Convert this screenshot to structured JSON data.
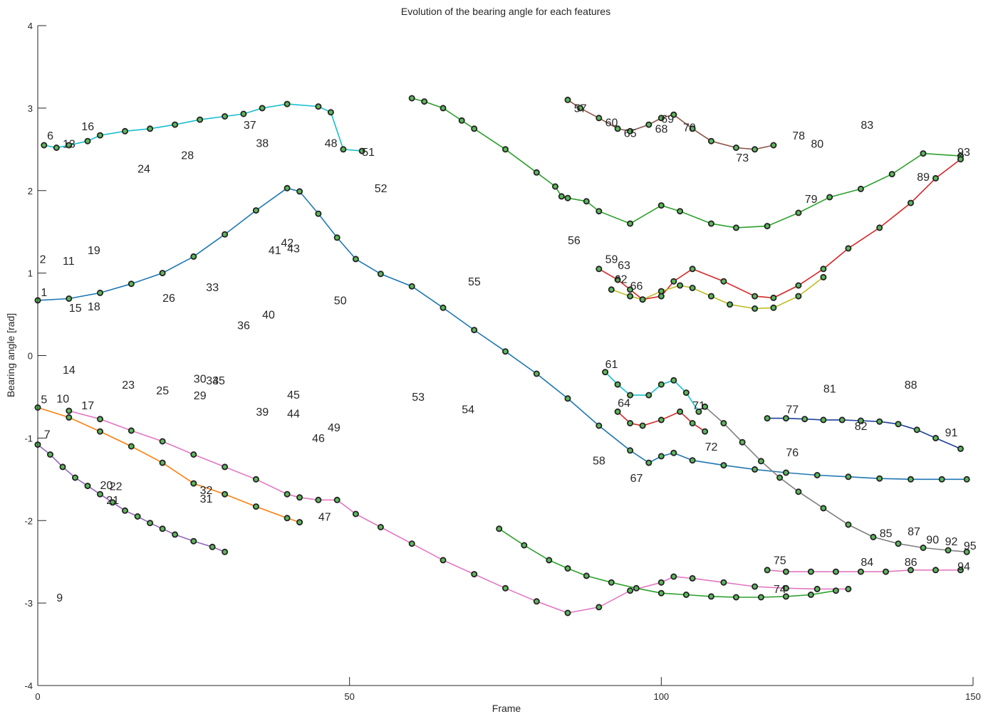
{
  "chart_data": {
    "type": "line",
    "title": "Evolution of the bearing angle for each features",
    "xlabel": "Frame",
    "ylabel": "Bearing angle [rad]",
    "xlim": [
      0,
      150
    ],
    "ylim": [
      -4,
      4
    ],
    "xticks": [
      0,
      50,
      100,
      150
    ],
    "yticks": [
      -4,
      -3,
      -2,
      -1,
      0,
      1,
      2,
      3,
      4
    ],
    "grid": false,
    "marker": {
      "face": "#5cb85c",
      "edge": "#222222"
    },
    "series": [
      {
        "color": "#1f77b4",
        "x": [
          0,
          5,
          10,
          15,
          20,
          25,
          30,
          35,
          40,
          42,
          45,
          48,
          51,
          55,
          60,
          65,
          70,
          75,
          80,
          85,
          90,
          95,
          98,
          100,
          102,
          105,
          110,
          115,
          120,
          125,
          130,
          135,
          140,
          145,
          149
        ],
        "y": [
          0.67,
          0.69,
          0.76,
          0.87,
          1.0,
          1.2,
          1.47,
          1.76,
          2.03,
          1.99,
          1.72,
          1.43,
          1.17,
          0.99,
          0.84,
          0.58,
          0.31,
          0.05,
          -0.22,
          -0.52,
          -0.85,
          -1.15,
          -1.3,
          -1.22,
          -1.18,
          -1.27,
          -1.33,
          -1.38,
          -1.42,
          -1.45,
          -1.47,
          -1.49,
          -1.5,
          -1.5,
          -1.5
        ]
      },
      {
        "color": "#e377c2",
        "x": [
          5,
          10,
          15,
          20,
          25,
          30,
          35,
          40,
          42,
          45,
          48,
          51,
          55,
          60,
          65,
          70,
          75,
          80,
          85,
          90,
          95,
          100,
          102,
          105,
          110,
          115,
          120,
          125,
          130
        ],
        "y": [
          -0.67,
          -0.77,
          -0.91,
          -1.04,
          -1.2,
          -1.35,
          -1.5,
          -1.68,
          -1.72,
          -1.75,
          -1.75,
          -1.92,
          -2.08,
          -2.28,
          -2.48,
          -2.65,
          -2.82,
          -2.98,
          -3.12,
          -3.05,
          -2.85,
          -2.75,
          -2.68,
          -2.7,
          -2.75,
          -2.8,
          -2.82,
          -2.83,
          -2.83
        ]
      },
      {
        "color": "#9467bd",
        "x": [
          0,
          2,
          4,
          6,
          8,
          10,
          12,
          14,
          16,
          18,
          20,
          22,
          25,
          28,
          30
        ],
        "y": [
          -1.08,
          -1.2,
          -1.35,
          -1.48,
          -1.58,
          -1.68,
          -1.78,
          -1.88,
          -1.95,
          -2.03,
          -2.1,
          -2.17,
          -2.25,
          -2.32,
          -2.38
        ]
      },
      {
        "color": "#17becf",
        "x": [
          1,
          3,
          5,
          8,
          10,
          14,
          18,
          22,
          26,
          30,
          33,
          36,
          40,
          45,
          47,
          49,
          52
        ],
        "y": [
          2.55,
          2.52,
          2.55,
          2.6,
          2.67,
          2.72,
          2.75,
          2.8,
          2.86,
          2.9,
          2.93,
          3.0,
          3.05,
          3.02,
          2.95,
          2.5,
          2.48
        ]
      },
      {
        "color": "#ff7f0e",
        "x": [
          0,
          5,
          10,
          15,
          20,
          25,
          30,
          35,
          40,
          42
        ],
        "y": [
          -0.63,
          -0.75,
          -0.92,
          -1.1,
          -1.3,
          -1.55,
          -1.68,
          -1.83,
          -1.97,
          -2.02
        ]
      },
      {
        "color": "#2ca02c",
        "x": [
          60,
          62,
          65,
          68,
          70,
          75,
          80,
          83,
          84,
          85,
          88,
          90,
          95,
          100,
          103,
          108,
          112,
          117,
          122,
          127,
          132,
          137,
          142,
          148
        ],
        "y": [
          3.12,
          3.08,
          3.0,
          2.85,
          2.75,
          2.5,
          2.22,
          2.05,
          1.93,
          1.91,
          1.87,
          1.75,
          1.6,
          1.82,
          1.75,
          1.6,
          1.55,
          1.57,
          1.73,
          1.92,
          2.02,
          2.2,
          2.45,
          2.42
        ]
      },
      {
        "color": "#8c564b",
        "x": [
          85,
          87,
          90,
          93,
          95,
          98,
          100,
          102,
          105,
          108,
          112,
          115,
          118
        ],
        "y": [
          3.1,
          3.0,
          2.88,
          2.75,
          2.72,
          2.8,
          2.88,
          2.92,
          2.75,
          2.6,
          2.52,
          2.5,
          2.55
        ]
      },
      {
        "color": "#d62728",
        "x": [
          90,
          93,
          95,
          97,
          100,
          102,
          105,
          110,
          115,
          118,
          122,
          126,
          130,
          135,
          140,
          144,
          148
        ],
        "y": [
          1.05,
          0.92,
          0.8,
          0.68,
          0.72,
          0.9,
          1.05,
          0.9,
          0.72,
          0.7,
          0.85,
          1.05,
          1.3,
          1.55,
          1.85,
          2.15,
          2.38
        ]
      },
      {
        "color": "#bcbd22",
        "x": [
          92,
          95,
          97,
          100,
          103,
          105,
          108,
          111,
          115,
          118,
          122,
          126
        ],
        "y": [
          0.8,
          0.72,
          0.68,
          0.78,
          0.85,
          0.82,
          0.72,
          0.62,
          0.57,
          0.58,
          0.72,
          0.95
        ]
      },
      {
        "color": "#17becf",
        "x": [
          91,
          93,
          95,
          98,
          100,
          102,
          104,
          106
        ],
        "y": [
          -0.2,
          -0.35,
          -0.48,
          -0.48,
          -0.35,
          -0.3,
          -0.45,
          -0.68
        ]
      },
      {
        "color": "#d62728",
        "x": [
          93,
          95,
          97,
          100,
          103,
          105,
          107
        ],
        "y": [
          -0.68,
          -0.82,
          -0.85,
          -0.78,
          -0.68,
          -0.82,
          -0.92
        ]
      },
      {
        "color": "#7f7f7f",
        "x": [
          107,
          110,
          113,
          116,
          119,
          122,
          126,
          130,
          134,
          138,
          142,
          146,
          149
        ],
        "y": [
          -0.62,
          -0.82,
          -1.05,
          -1.28,
          -1.48,
          -1.65,
          -1.85,
          -2.05,
          -2.2,
          -2.28,
          -2.33,
          -2.36,
          -2.38
        ]
      },
      {
        "color": "#1f3f99",
        "x": [
          117,
          120,
          123,
          126,
          129,
          132,
          135,
          138,
          141,
          144,
          148
        ],
        "y": [
          -0.76,
          -0.76,
          -0.77,
          -0.78,
          -0.78,
          -0.79,
          -0.8,
          -0.83,
          -0.9,
          -1.0,
          -1.13
        ]
      },
      {
        "color": "#e377c2",
        "x": [
          117,
          120,
          124,
          128,
          132,
          136,
          140,
          144,
          148
        ],
        "y": [
          -2.6,
          -2.62,
          -2.62,
          -2.62,
          -2.62,
          -2.62,
          -2.6,
          -2.6,
          -2.6
        ]
      },
      {
        "color": "#2ca02c",
        "x": [
          74,
          78,
          82,
          85,
          88,
          92,
          96,
          100,
          104,
          108,
          112,
          116,
          120,
          124,
          128
        ],
        "y": [
          -2.1,
          -2.3,
          -2.48,
          -2.58,
          -2.67,
          -2.75,
          -2.82,
          -2.88,
          -2.9,
          -2.92,
          -2.93,
          -2.93,
          -2.92,
          -2.9,
          -2.85
        ]
      }
    ],
    "labels": [
      {
        "text": "1",
        "x": 0.5,
        "y": 0.72
      },
      {
        "text": "2",
        "x": 0.3,
        "y": 1.12
      },
      {
        "text": "5",
        "x": 0.5,
        "y": -0.58
      },
      {
        "text": "6",
        "x": 1.5,
        "y": 2.62
      },
      {
        "text": "7",
        "x": 1.0,
        "y": -1.0
      },
      {
        "text": "9",
        "x": 3.0,
        "y": -2.98
      },
      {
        "text": "10",
        "x": 3.0,
        "y": -0.57
      },
      {
        "text": "11",
        "x": 4.0,
        "y": 1.1
      },
      {
        "text": "13",
        "x": 4.0,
        "y": 2.52
      },
      {
        "text": "14",
        "x": 4.0,
        "y": -0.22
      },
      {
        "text": "15",
        "x": 5.0,
        "y": 0.53
      },
      {
        "text": "16",
        "x": 7.0,
        "y": 2.73
      },
      {
        "text": "17",
        "x": 7.0,
        "y": -0.65
      },
      {
        "text": "18",
        "x": 8.0,
        "y": 0.55
      },
      {
        "text": "19",
        "x": 8.0,
        "y": 1.23
      },
      {
        "text": "20",
        "x": 10.0,
        "y": -1.62
      },
      {
        "text": "21",
        "x": 11.0,
        "y": -1.8
      },
      {
        "text": "22",
        "x": 11.5,
        "y": -1.63
      },
      {
        "text": "23",
        "x": 13.5,
        "y": -0.4
      },
      {
        "text": "24",
        "x": 16.0,
        "y": 2.22
      },
      {
        "text": "25",
        "x": 19.0,
        "y": -0.47
      },
      {
        "text": "26",
        "x": 20.0,
        "y": 0.65
      },
      {
        "text": "28",
        "x": 23.0,
        "y": 2.38
      },
      {
        "text": "29",
        "x": 25.0,
        "y": -0.53
      },
      {
        "text": "30",
        "x": 25.0,
        "y": -0.33
      },
      {
        "text": "31",
        "x": 26.0,
        "y": -1.78
      },
      {
        "text": "32",
        "x": 26.0,
        "y": -1.68
      },
      {
        "text": "33",
        "x": 27.0,
        "y": 0.78
      },
      {
        "text": "34",
        "x": 27.0,
        "y": -0.35
      },
      {
        "text": "35",
        "x": 28.0,
        "y": -0.35
      },
      {
        "text": "36",
        "x": 32.0,
        "y": 0.32
      },
      {
        "text": "37",
        "x": 33.0,
        "y": 2.75
      },
      {
        "text": "38",
        "x": 35.0,
        "y": 2.53
      },
      {
        "text": "39",
        "x": 35.0,
        "y": -0.73
      },
      {
        "text": "40",
        "x": 36.0,
        "y": 0.45
      },
      {
        "text": "41",
        "x": 37.0,
        "y": 1.23
      },
      {
        "text": "42",
        "x": 39.0,
        "y": 1.32
      },
      {
        "text": "43",
        "x": 40.0,
        "y": 1.25
      },
      {
        "text": "44",
        "x": 40.0,
        "y": -0.75
      },
      {
        "text": "45",
        "x": 40.0,
        "y": -0.52
      },
      {
        "text": "46",
        "x": 44.0,
        "y": -1.05
      },
      {
        "text": "47",
        "x": 45.0,
        "y": -2.0
      },
      {
        "text": "48",
        "x": 46.0,
        "y": 2.53
      },
      {
        "text": "49",
        "x": 46.5,
        "y": -0.92
      },
      {
        "text": "50",
        "x": 47.5,
        "y": 0.62
      },
      {
        "text": "51",
        "x": 52.0,
        "y": 2.42
      },
      {
        "text": "52",
        "x": 54.0,
        "y": 1.98
      },
      {
        "text": "53",
        "x": 60.0,
        "y": -0.55
      },
      {
        "text": "54",
        "x": 68.0,
        "y": -0.7
      },
      {
        "text": "55",
        "x": 69.0,
        "y": 0.85
      },
      {
        "text": "56",
        "x": 85.0,
        "y": 1.35
      },
      {
        "text": "57",
        "x": 86.0,
        "y": 2.95
      },
      {
        "text": "58",
        "x": 89.0,
        "y": -1.32
      },
      {
        "text": "59",
        "x": 91.0,
        "y": 1.12
      },
      {
        "text": "60",
        "x": 91.0,
        "y": 2.78
      },
      {
        "text": "61",
        "x": 91.0,
        "y": -0.15
      },
      {
        "text": "62",
        "x": 92.5,
        "y": 0.88
      },
      {
        "text": "63",
        "x": 93.0,
        "y": 1.05
      },
      {
        "text": "64",
        "x": 93.0,
        "y": -0.62
      },
      {
        "text": "65",
        "x": 94.0,
        "y": 2.65
      },
      {
        "text": "66",
        "x": 95.0,
        "y": 0.8
      },
      {
        "text": "67",
        "x": 95.0,
        "y": -1.53
      },
      {
        "text": "68",
        "x": 99.0,
        "y": 2.7
      },
      {
        "text": "69",
        "x": 100.0,
        "y": 2.82
      },
      {
        "text": "70",
        "x": 103.5,
        "y": 2.72
      },
      {
        "text": "71",
        "x": 105.0,
        "y": -0.65
      },
      {
        "text": "72",
        "x": 107.0,
        "y": -1.15
      },
      {
        "text": "73",
        "x": 112.0,
        "y": 2.35
      },
      {
        "text": "74",
        "x": 118.0,
        "y": -2.88
      },
      {
        "text": "75",
        "x": 118.0,
        "y": -2.53
      },
      {
        "text": "76",
        "x": 120.0,
        "y": -1.22
      },
      {
        "text": "77",
        "x": 120.0,
        "y": -0.7
      },
      {
        "text": "78",
        "x": 121.0,
        "y": 2.62
      },
      {
        "text": "79",
        "x": 123.0,
        "y": 1.85
      },
      {
        "text": "80",
        "x": 124.0,
        "y": 2.52
      },
      {
        "text": "81",
        "x": 126.0,
        "y": -0.45
      },
      {
        "text": "82",
        "x": 131.0,
        "y": -0.9
      },
      {
        "text": "83",
        "x": 132.0,
        "y": 2.75
      },
      {
        "text": "84",
        "x": 132.0,
        "y": -2.55
      },
      {
        "text": "85",
        "x": 135.0,
        "y": -2.2
      },
      {
        "text": "86",
        "x": 139.0,
        "y": -2.55
      },
      {
        "text": "87",
        "x": 139.5,
        "y": -2.18
      },
      {
        "text": "88",
        "x": 139.0,
        "y": -0.4
      },
      {
        "text": "89",
        "x": 141.0,
        "y": 2.12
      },
      {
        "text": "90",
        "x": 142.5,
        "y": -2.28
      },
      {
        "text": "91",
        "x": 145.5,
        "y": -0.98
      },
      {
        "text": "92",
        "x": 145.5,
        "y": -2.3
      },
      {
        "text": "93",
        "x": 147.5,
        "y": 2.42
      },
      {
        "text": "94",
        "x": 147.5,
        "y": -2.6
      },
      {
        "text": "95",
        "x": 148.5,
        "y": -2.35
      }
    ]
  }
}
